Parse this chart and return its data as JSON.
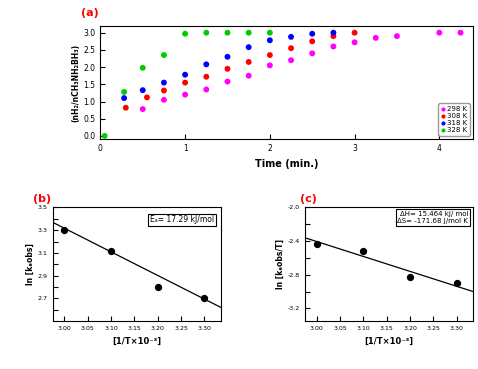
{
  "panel_a": {
    "label": "(a)",
    "xlabel": "Time (min.)",
    "ylabel": "(nH₂/nCH₃NH₂BH₃)",
    "ylim": [
      -0.1,
      3.2
    ],
    "xlim": [
      0,
      4.4
    ],
    "series": {
      "298K": {
        "color": "#FF00FF",
        "label": "298 K",
        "x": [
          0.5,
          0.75,
          1.0,
          1.25,
          1.5,
          1.75,
          2.0,
          2.25,
          2.5,
          2.75,
          3.0,
          3.25,
          3.5,
          4.0,
          4.25
        ],
        "y": [
          0.78,
          1.05,
          1.2,
          1.35,
          1.58,
          1.75,
          2.05,
          2.2,
          2.4,
          2.6,
          2.72,
          2.85,
          2.9,
          3.0,
          3.0
        ]
      },
      "308K": {
        "color": "red",
        "label": "308 K",
        "x": [
          0.3,
          0.55,
          0.75,
          1.0,
          1.25,
          1.5,
          1.75,
          2.0,
          2.25,
          2.5,
          2.75,
          3.0
        ],
        "y": [
          0.82,
          1.12,
          1.32,
          1.55,
          1.72,
          1.95,
          2.15,
          2.35,
          2.55,
          2.75,
          2.9,
          3.0
        ]
      },
      "318K": {
        "color": "blue",
        "label": "318 K",
        "x": [
          0.28,
          0.5,
          0.75,
          1.0,
          1.25,
          1.5,
          1.75,
          2.0,
          2.25,
          2.5,
          2.75
        ],
        "y": [
          1.1,
          1.33,
          1.55,
          1.78,
          2.08,
          2.3,
          2.58,
          2.78,
          2.88,
          2.97,
          3.0
        ]
      },
      "328K": {
        "color": "#00CC00",
        "label": "328 K",
        "x": [
          0.05,
          0.28,
          0.5,
          0.75,
          1.0,
          1.25,
          1.5,
          1.75,
          2.0
        ],
        "y": [
          0.0,
          1.28,
          1.98,
          2.35,
          2.97,
          3.0,
          3.0,
          3.0,
          3.0
        ]
      }
    }
  },
  "panel_b": {
    "label": "(b)",
    "xlabel": "[1/T×10⁻³]",
    "ylabel": "ln [kₑobs]",
    "ylim": [
      2.5,
      3.5
    ],
    "xlim": [
      2.975,
      3.335
    ],
    "annotation": "Eₐ= 17.29 kJ/mol",
    "x_data": [
      3.0,
      3.1,
      3.2,
      3.3
    ],
    "y_data": [
      3.3,
      3.12,
      2.8,
      2.7
    ],
    "fit_x": [
      2.975,
      3.335
    ],
    "fit_y": [
      3.37,
      2.62
    ]
  },
  "panel_c": {
    "label": "(c)",
    "xlabel": "[1/T×10⁻³]",
    "ylabel": "ln [kₑobs/T]",
    "ylim": [
      -3.35,
      -2.0
    ],
    "xlim": [
      2.975,
      3.335
    ],
    "annotation_line1": "ΔH= 15.464 kJ/ mol",
    "annotation_line2": "ΔS= -171.68 J/mol K",
    "x_data": [
      3.0,
      3.1,
      3.2,
      3.3
    ],
    "y_data": [
      -2.43,
      -2.52,
      -2.83,
      -2.9
    ],
    "fit_x": [
      2.975,
      3.335
    ],
    "fit_y": [
      -2.36,
      -3.0
    ]
  },
  "background_color": "white",
  "label_color": "red"
}
